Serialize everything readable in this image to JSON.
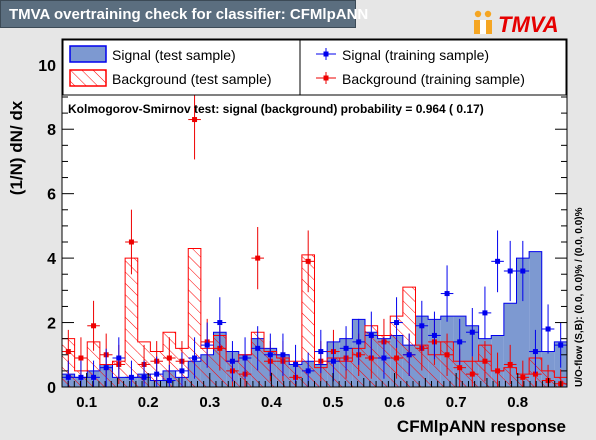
{
  "header": {
    "title": "TMVA overtraining check for classifier: CFMlpANN",
    "logo_text": "TMVA"
  },
  "chart_data": {
    "type": "histogram",
    "xlabel": "CFMlpANN response",
    "ylabel": "(1/N) dN/ dx",
    "xlim": [
      0.06,
      0.88
    ],
    "ylim": [
      0,
      10.8
    ],
    "x_ticks": [
      "0.1",
      "0.2",
      "0.3",
      "0.4",
      "0.5",
      "0.6",
      "0.7",
      "0.8"
    ],
    "y_ticks": [
      "0",
      "2",
      "4",
      "6",
      "8",
      "10"
    ],
    "bin_edges": [
      0.06,
      0.0805,
      0.101,
      0.1215,
      0.142,
      0.1625,
      0.183,
      0.2035,
      0.224,
      0.2445,
      0.265,
      0.2855,
      0.306,
      0.3265,
      0.347,
      0.3675,
      0.388,
      0.4085,
      0.429,
      0.4495,
      0.47,
      0.4905,
      0.511,
      0.5315,
      0.552,
      0.5725,
      0.593,
      0.6135,
      0.634,
      0.6545,
      0.675,
      0.6955,
      0.716,
      0.7365,
      0.757,
      0.7775,
      0.798,
      0.8185,
      0.839,
      0.8595,
      0.88
    ],
    "legend": {
      "signal_test": "Signal (test sample)",
      "background_test": "Background (test sample)",
      "signal_train": "Signal (training sample)",
      "background_train": "Background (training sample)"
    },
    "annotation": "Kolmogorov-Smirnov test: signal (background) probability = 0.964 ( 0.17)",
    "overflow_label": "U/O-flow (S,B): (0.0, 0.0)% / (0.0, 0.0)%",
    "series": [
      {
        "name": "Signal (test sample)",
        "kind": "filled",
        "color": "#7d99d1",
        "values": [
          0.4,
          0.3,
          0.5,
          0.7,
          0.3,
          0.3,
          0.4,
          0.2,
          0.5,
          0.3,
          0.8,
          1.0,
          1.7,
          1.1,
          1.0,
          1.5,
          1.2,
          1.0,
          0.7,
          0.8,
          0.7,
          1.4,
          1.5,
          2.1,
          1.7,
          1.5,
          1.6,
          1.3,
          2.2,
          2.1,
          2.2,
          2.2,
          1.9,
          1.5,
          1.6,
          2.6,
          4.0,
          4.2,
          1.1,
          1.4
        ]
      },
      {
        "name": "Background (test sample)",
        "kind": "hatched",
        "color": "#ff0000",
        "values": [
          1.5,
          0.5,
          1.4,
          0.7,
          0.8,
          4.0,
          1.4,
          1.1,
          1.7,
          1.2,
          4.3,
          1.2,
          1.6,
          0.8,
          1.0,
          1.7,
          1.1,
          0.9,
          0.8,
          4.1,
          0.6,
          0.9,
          0.8,
          1.2,
          1.9,
          1.6,
          2.2,
          3.1,
          1.3,
          1.0,
          1.4,
          0.8,
          0.8,
          1.3,
          0.5,
          0.6,
          0.4,
          0.9,
          0.5,
          0.3
        ]
      },
      {
        "name": "Signal (training sample)",
        "kind": "points",
        "color": "#0000ee",
        "values": [
          0.3,
          0.3,
          0.3,
          0.6,
          0.9,
          0.3,
          0.3,
          0.4,
          0.2,
          0.5,
          0.9,
          1.3,
          2.0,
          0.8,
          0.9,
          1.2,
          1.0,
          1.0,
          0.7,
          0.5,
          1.1,
          0.8,
          1.2,
          1.4,
          1.6,
          0.9,
          2.0,
          1.0,
          1.9,
          1.6,
          2.9,
          1.4,
          1.7,
          2.3,
          3.9,
          3.6,
          3.6,
          1.1,
          1.8,
          1.3
        ]
      },
      {
        "name": "Background (training sample)",
        "kind": "points",
        "color": "#ee0000",
        "values": [
          1.1,
          0.9,
          1.9,
          1.0,
          0.7,
          4.5,
          0.7,
          0.8,
          0.9,
          0.8,
          8.3,
          1.4,
          1.2,
          0.5,
          0.4,
          4.0,
          0.8,
          0.8,
          0.3,
          3.9,
          0.8,
          1.1,
          0.9,
          1.0,
          0.9,
          1.4,
          0.9,
          1.0,
          1.2,
          1.4,
          1.0,
          0.6,
          0.4,
          0.8,
          0.5,
          0.7,
          0.3,
          0.4,
          0.2,
          0.1
        ]
      }
    ]
  }
}
